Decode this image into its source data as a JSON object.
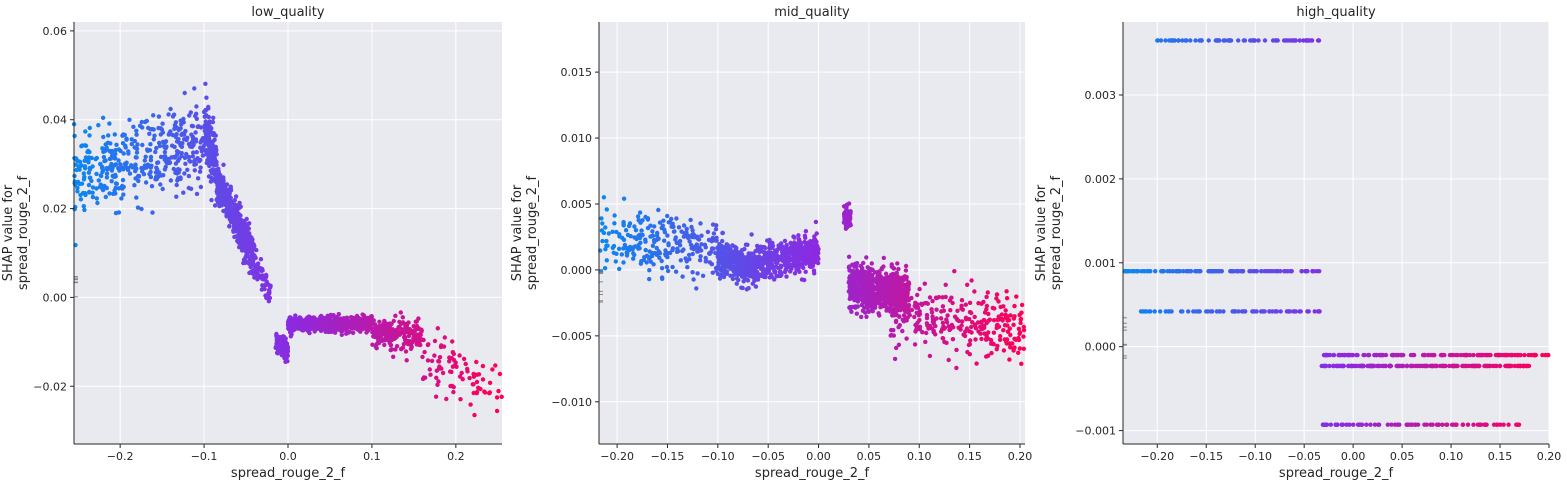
{
  "colors": {
    "low_feature": "#0a88f0",
    "mid_feature": "#8a2be2",
    "high_feature": "#ff0054",
    "plot_background": "#e9e9f0",
    "grid": "#ffffff"
  },
  "chart_data": [
    {
      "type": "scatter",
      "title": "low_quality",
      "xlabel": "spread_rouge_2_f",
      "ylabel": [
        "SHAP value for",
        "spread_rouge_2_f"
      ],
      "xlim": [
        -0.255,
        0.255
      ],
      "ylim": [
        -0.033,
        0.062
      ],
      "xticks": [
        -0.2,
        -0.1,
        0.0,
        0.1,
        0.2
      ],
      "xtick_labels": [
        "−0.2",
        "−0.1",
        "0.0",
        "0.1",
        "0.2"
      ],
      "yticks": [
        -0.02,
        0.0,
        0.02,
        0.04,
        0.06
      ],
      "ytick_labels": [
        "−0.02",
        "0.00",
        "0.02",
        "0.04",
        "0.06"
      ],
      "grid": true,
      "color_encoding": "point color runs from blue (low feature value) through purple to red (high feature value)",
      "series": [
        {
          "x_range": [
            -0.255,
            -0.1
          ],
          "y_mean": [
            0.027,
            0.035
          ],
          "y_spread": 0.008,
          "count": 420
        },
        {
          "x_range": [
            -0.1,
            -0.085
          ],
          "y_mean": [
            0.037,
            0.03
          ],
          "y_spread": 0.007,
          "count": 140
        },
        {
          "x_range": [
            -0.085,
            -0.04
          ],
          "y_mean": [
            0.026,
            0.009
          ],
          "y_spread": 0.004,
          "count": 500
        },
        {
          "x_range": [
            -0.04,
            -0.02
          ],
          "y_mean": [
            0.008,
            0.0
          ],
          "y_spread": 0.003,
          "count": 60
        },
        {
          "x_range": [
            -0.015,
            0.0
          ],
          "y_mean": [
            -0.01,
            -0.012
          ],
          "y_spread": 0.002,
          "count": 120
        },
        {
          "x_range": [
            0.0,
            0.1
          ],
          "y_mean": [
            -0.006,
            -0.006
          ],
          "y_spread": 0.0015,
          "count": 750
        },
        {
          "x_range": [
            0.1,
            0.16
          ],
          "y_mean": [
            -0.008,
            -0.009
          ],
          "y_spread": 0.003,
          "count": 220
        },
        {
          "x_range": [
            0.16,
            0.255
          ],
          "y_mean": [
            -0.012,
            -0.022
          ],
          "y_spread": 0.006,
          "count": 90
        }
      ]
    },
    {
      "type": "scatter",
      "title": "mid_quality",
      "xlabel": "spread_rouge_2_f",
      "ylabel": [
        "SHAP value for",
        "spread_rouge_2_f"
      ],
      "xlim": [
        -0.218,
        0.205
      ],
      "ylim": [
        -0.0132,
        0.0188
      ],
      "xticks": [
        -0.2,
        -0.15,
        -0.1,
        -0.05,
        0.0,
        0.05,
        0.1,
        0.15,
        0.2
      ],
      "xtick_labels": [
        "−0.20",
        "−0.15",
        "−0.10",
        "−0.05",
        "0.00",
        "0.05",
        "0.10",
        "0.15",
        "0.20"
      ],
      "yticks": [
        -0.01,
        -0.005,
        0.0,
        0.005,
        0.01,
        0.015
      ],
      "ytick_labels": [
        "−0.010",
        "−0.005",
        "0.000",
        "0.005",
        "0.010",
        "0.015"
      ],
      "grid": true,
      "color_encoding": "point color runs from blue (low feature value) through purple to red (high feature value)",
      "series": [
        {
          "x_range": [
            -0.218,
            -0.1
          ],
          "y_mean": [
            0.0025,
            0.0015
          ],
          "y_spread": 0.0022,
          "count": 250
        },
        {
          "x_range": [
            -0.1,
            -0.06
          ],
          "y_mean": [
            0.001,
            0.0
          ],
          "y_spread": 0.0012,
          "count": 350
        },
        {
          "x_range": [
            -0.06,
            0.0
          ],
          "y_mean": [
            0.0005,
            0.0015
          ],
          "y_spread": 0.0012,
          "count": 400
        },
        {
          "x_range": [
            0.025,
            0.032
          ],
          "y_mean": [
            0.004,
            0.004
          ],
          "y_spread": 0.0008,
          "count": 60
        },
        {
          "x_range": [
            0.03,
            0.09
          ],
          "y_mean": [
            -0.001,
            -0.002
          ],
          "y_spread": 0.0015,
          "count": 700
        },
        {
          "x_range": [
            0.07,
            0.205
          ],
          "y_mean": [
            -0.003,
            -0.005
          ],
          "y_spread": 0.0022,
          "count": 300
        }
      ]
    },
    {
      "type": "scatter",
      "title": "high_quality",
      "xlabel": "spread_rouge_2_f",
      "ylabel": [
        "SHAP value for",
        "spread_rouge_2_f"
      ],
      "xlim": [
        -0.235,
        0.2
      ],
      "ylim": [
        -0.00116,
        0.00387
      ],
      "xticks": [
        -0.2,
        -0.15,
        -0.1,
        -0.05,
        0.0,
        0.05,
        0.1,
        0.15,
        0.2
      ],
      "xtick_labels": [
        "−0.20",
        "−0.15",
        "−0.10",
        "−0.05",
        "0.00",
        "0.05",
        "0.10",
        "0.15",
        "0.20"
      ],
      "yticks": [
        -0.001,
        0.0,
        0.001,
        0.002,
        0.003
      ],
      "ytick_labels": [
        "−0.001",
        "0.000",
        "0.001",
        "0.002",
        "0.003"
      ],
      "grid": true,
      "color_encoding": "point color runs from blue (low feature value) through purple to red (high feature value)",
      "series": [
        {
          "y": 0.00365,
          "x_range": [
            -0.2,
            -0.033
          ],
          "count": 70
        },
        {
          "y": 0.0009,
          "x_range": [
            -0.235,
            -0.033
          ],
          "count": 120
        },
        {
          "y": 0.00042,
          "x_range": [
            -0.22,
            -0.033
          ],
          "count": 70
        },
        {
          "y": -0.0001,
          "x_range": [
            -0.033,
            0.2
          ],
          "count": 140
        },
        {
          "y": -0.00023,
          "x_range": [
            -0.033,
            0.18
          ],
          "count": 170
        },
        {
          "y": -0.00093,
          "x_range": [
            -0.033,
            0.17
          ],
          "count": 80
        }
      ]
    }
  ]
}
